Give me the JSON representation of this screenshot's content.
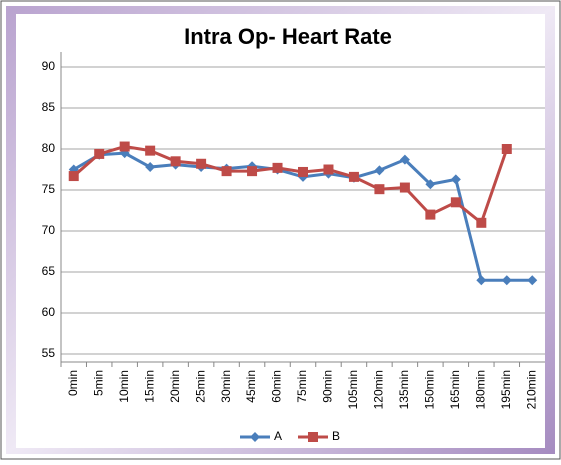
{
  "chart_data": {
    "type": "line",
    "title": "Intra Op- Heart Rate",
    "categories": [
      "0min",
      "5min",
      "10min",
      "15min",
      "20min",
      "25min",
      "30min",
      "45min",
      "60min",
      "75min",
      "90min",
      "105min",
      "120min",
      "135min",
      "150min",
      "165min",
      "180min",
      "195min",
      "210min"
    ],
    "series": [
      {
        "name": "A",
        "color": "#4a7ebb",
        "marker": "diamond",
        "values": [
          77.5,
          79.3,
          79.5,
          77.8,
          78.1,
          77.8,
          77.6,
          77.9,
          77.5,
          76.6,
          77.0,
          76.5,
          77.4,
          78.7,
          75.7,
          76.3,
          64,
          64,
          64
        ]
      },
      {
        "name": "B",
        "color": "#be4b48",
        "marker": "square",
        "values": [
          76.7,
          79.4,
          80.3,
          79.8,
          78.5,
          78.2,
          77.3,
          77.3,
          77.7,
          77.2,
          77.5,
          76.6,
          75.1,
          75.3,
          72.0,
          73.5,
          71.0,
          80.0,
          null
        ]
      }
    ],
    "ylim": [
      55,
      90
    ],
    "yticks": [
      55,
      60,
      65,
      70,
      75,
      80,
      85,
      90
    ],
    "grid": true,
    "legend": "bottom"
  }
}
